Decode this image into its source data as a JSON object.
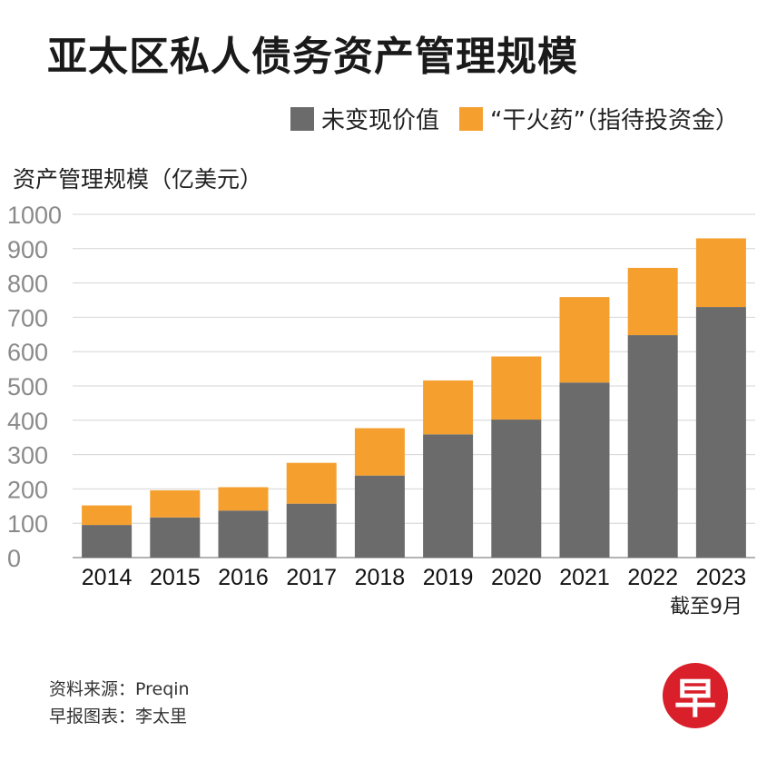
{
  "title": "亚太区私人债务资产管理规模",
  "legend": {
    "items": [
      {
        "label": "未变现价值",
        "color": "#6b6b6b"
      },
      {
        "label": "“干火药”（指待投资金）",
        "color": "#f5a02e"
      }
    ]
  },
  "note": "截至9月",
  "footer": {
    "source": "资料来源：Preqin",
    "credit": "早报图表：李太里"
  },
  "logo": {
    "text": "早"
  },
  "chart_data": {
    "type": "bar",
    "stacked": true,
    "title": "亚太区私人债务资产管理规模",
    "ylabel": "资产管理规模（亿美元）",
    "xlabel": "",
    "ylim": [
      0,
      1000
    ],
    "yticks": [
      0,
      100,
      200,
      300,
      400,
      500,
      600,
      700,
      800,
      900,
      1000
    ],
    "grid": true,
    "legend_position": "top-right",
    "categories": [
      "2014",
      "2015",
      "2016",
      "2017",
      "2018",
      "2019",
      "2020",
      "2021",
      "2022",
      "2023"
    ],
    "series": [
      {
        "name": "未变现价值",
        "color": "#6b6b6b",
        "values": [
          95,
          117,
          137,
          157,
          239,
          359,
          402,
          510,
          648,
          730
        ]
      },
      {
        "name": "“干火药”（指待投资金）",
        "color": "#f5a02e",
        "values": [
          57,
          79,
          68,
          119,
          138,
          157,
          184,
          249,
          196,
          200
        ]
      }
    ]
  }
}
